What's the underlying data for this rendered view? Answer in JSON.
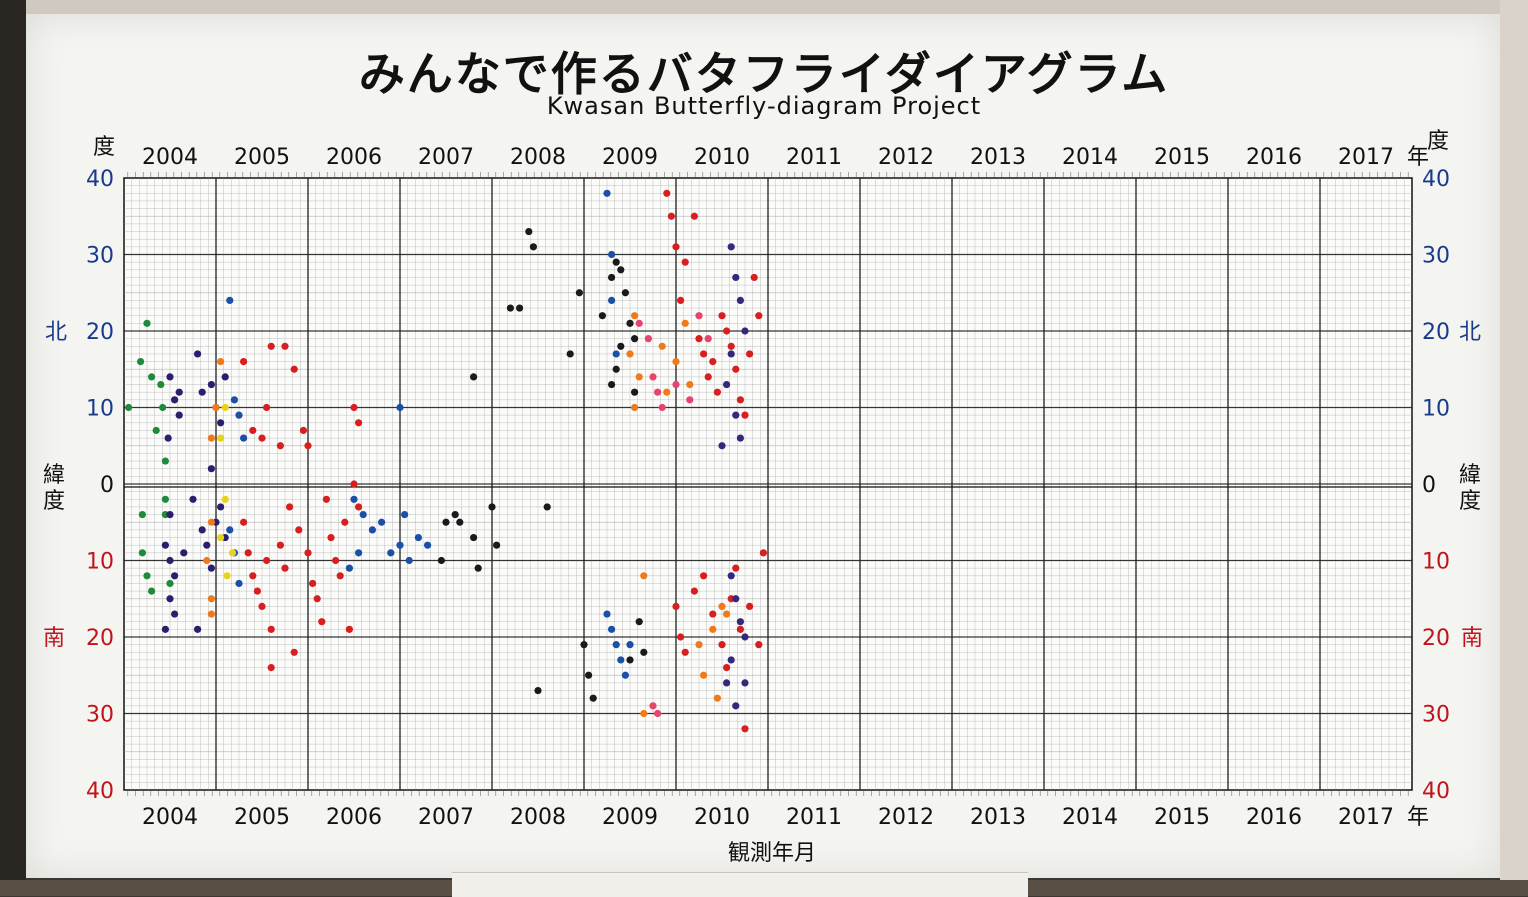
{
  "title_jp": "みんなで作るバタフライダイアグラム",
  "title_en": "Kwasan Butterfly-diagram Project",
  "xlabel": "観測年月",
  "side_labels": {
    "degree": "度",
    "year_unit": "年",
    "north": "北",
    "south": "南",
    "latitude": "緯度"
  },
  "colors": {
    "north_axis": "#1a3a8c",
    "south_axis": "#c0141c",
    "grid": "#9a9a9a",
    "grid_major": "#202020"
  },
  "chart_data": {
    "type": "scatter",
    "title": "みんなで作るバタフライダイアグラム",
    "subtitle": "Kwasan Butterfly-diagram Project",
    "xlabel": "観測年月",
    "ylabel": "緯度",
    "x_range": [
      2004,
      2018
    ],
    "y_range": [
      -40,
      40
    ],
    "years": [
      "2004",
      "2005",
      "2006",
      "2007",
      "2008",
      "2009",
      "2010",
      "2011",
      "2012",
      "2013",
      "2014",
      "2015",
      "2016",
      "2017"
    ],
    "y_ticks_left": [
      "40",
      "30",
      "20",
      "10",
      "0",
      "10",
      "20",
      "30",
      "40"
    ],
    "y_ticks_right": [
      "40",
      "30",
      "20",
      "10",
      "0",
      "10",
      "20",
      "30",
      "40"
    ],
    "grid": true,
    "series": [
      {
        "color": "#1f8a3a",
        "points": [
          [
            2004.05,
            10
          ],
          [
            2004.18,
            16
          ],
          [
            2004.25,
            21
          ],
          [
            2004.3,
            14
          ],
          [
            2004.35,
            7
          ],
          [
            2004.4,
            13
          ],
          [
            2004.42,
            10
          ],
          [
            2004.45,
            3
          ],
          [
            2004.45,
            -2
          ],
          [
            2004.45,
            -4
          ],
          [
            2004.2,
            -4
          ],
          [
            2004.2,
            -9
          ],
          [
            2004.25,
            -12
          ],
          [
            2004.3,
            -14
          ],
          [
            2004.5,
            -13
          ]
        ]
      },
      {
        "color": "#2a1f6e",
        "points": [
          [
            2004.5,
            14
          ],
          [
            2004.55,
            11
          ],
          [
            2004.6,
            9
          ],
          [
            2004.48,
            6
          ],
          [
            2004.6,
            12
          ],
          [
            2004.8,
            17
          ],
          [
            2004.85,
            12
          ],
          [
            2004.95,
            13
          ],
          [
            2005.0,
            10
          ],
          [
            2005.05,
            8
          ],
          [
            2005.1,
            14
          ],
          [
            2004.95,
            2
          ],
          [
            2004.5,
            -4
          ],
          [
            2004.45,
            -8
          ],
          [
            2004.5,
            -10
          ],
          [
            2004.55,
            -12
          ],
          [
            2004.5,
            -15
          ],
          [
            2004.55,
            -17
          ],
          [
            2004.45,
            -19
          ],
          [
            2004.75,
            -2
          ],
          [
            2004.85,
            -6
          ],
          [
            2004.9,
            -8
          ],
          [
            2005.0,
            -5
          ],
          [
            2005.05,
            -3
          ],
          [
            2004.95,
            -11
          ],
          [
            2005.1,
            -7
          ],
          [
            2004.8,
            -19
          ],
          [
            2004.65,
            -9
          ]
        ]
      },
      {
        "color": "#1b4fa8",
        "points": [
          [
            2005.15,
            24
          ],
          [
            2005.2,
            11
          ],
          [
            2005.25,
            9
          ],
          [
            2005.3,
            6
          ],
          [
            2005.15,
            -6
          ],
          [
            2005.2,
            -9
          ],
          [
            2005.25,
            -13
          ],
          [
            2007.0,
            10
          ],
          [
            2006.5,
            -2
          ],
          [
            2006.6,
            -4
          ],
          [
            2006.7,
            -6
          ],
          [
            2006.8,
            -5
          ],
          [
            2006.9,
            -9
          ],
          [
            2007.0,
            -8
          ],
          [
            2007.05,
            -4
          ],
          [
            2007.1,
            -10
          ],
          [
            2007.2,
            -7
          ],
          [
            2007.3,
            -8
          ],
          [
            2006.55,
            -9
          ],
          [
            2006.45,
            -11
          ],
          [
            2009.25,
            38
          ],
          [
            2009.3,
            30
          ],
          [
            2009.3,
            24
          ],
          [
            2009.35,
            17
          ],
          [
            2009.25,
            -17
          ],
          [
            2009.3,
            -19
          ],
          [
            2009.35,
            -21
          ],
          [
            2009.4,
            -23
          ],
          [
            2009.45,
            -25
          ],
          [
            2009.5,
            -21
          ]
        ]
      },
      {
        "color": "#e8d21a",
        "points": [
          [
            2005.1,
            -2
          ],
          [
            2005.05,
            -7
          ],
          [
            2005.12,
            -12
          ],
          [
            2005.18,
            -9
          ],
          [
            2005.1,
            10
          ],
          [
            2005.05,
            6
          ]
        ]
      },
      {
        "color": "#f07a1a",
        "points": [
          [
            2005.05,
            16
          ],
          [
            2005.0,
            10
          ],
          [
            2004.95,
            6
          ],
          [
            2004.95,
            -5
          ],
          [
            2004.9,
            -10
          ],
          [
            2004.95,
            -15
          ],
          [
            2004.95,
            -17
          ],
          [
            2009.55,
            22
          ],
          [
            2009.5,
            17
          ],
          [
            2009.6,
            14
          ],
          [
            2009.55,
            10
          ],
          [
            2009.65,
            -12
          ],
          [
            2009.65,
            -30
          ],
          [
            2009.85,
            18
          ],
          [
            2009.9,
            12
          ],
          [
            2010.0,
            16
          ],
          [
            2010.1,
            21
          ],
          [
            2010.15,
            13
          ],
          [
            2010.25,
            -21
          ],
          [
            2010.3,
            -25
          ],
          [
            2010.4,
            -19
          ],
          [
            2010.45,
            -28
          ],
          [
            2010.5,
            -16
          ],
          [
            2010.55,
            -17
          ]
        ]
      },
      {
        "color": "#d81e1e",
        "points": [
          [
            2005.3,
            16
          ],
          [
            2005.4,
            7
          ],
          [
            2005.55,
            10
          ],
          [
            2005.6,
            18
          ],
          [
            2005.75,
            18
          ],
          [
            2005.5,
            6
          ],
          [
            2005.7,
            5
          ],
          [
            2005.85,
            15
          ],
          [
            2005.95,
            7
          ],
          [
            2006.0,
            5
          ],
          [
            2006.5,
            10
          ],
          [
            2006.55,
            8
          ],
          [
            2005.3,
            -5
          ],
          [
            2005.35,
            -9
          ],
          [
            2005.4,
            -12
          ],
          [
            2005.45,
            -14
          ],
          [
            2005.5,
            -16
          ],
          [
            2005.55,
            -10
          ],
          [
            2005.6,
            -19
          ],
          [
            2005.7,
            -8
          ],
          [
            2005.75,
            -11
          ],
          [
            2005.8,
            -3
          ],
          [
            2005.85,
            -22
          ],
          [
            2005.9,
            -6
          ],
          [
            2006.0,
            -9
          ],
          [
            2006.05,
            -13
          ],
          [
            2006.1,
            -15
          ],
          [
            2006.15,
            -18
          ],
          [
            2006.2,
            -2
          ],
          [
            2006.25,
            -7
          ],
          [
            2006.3,
            -10
          ],
          [
            2006.35,
            -12
          ],
          [
            2006.4,
            -5
          ],
          [
            2006.45,
            -19
          ],
          [
            2006.5,
            0
          ],
          [
            2006.55,
            -3
          ],
          [
            2005.6,
            -24
          ],
          [
            2009.9,
            38
          ],
          [
            2009.95,
            35
          ],
          [
            2010.0,
            31
          ],
          [
            2010.05,
            24
          ],
          [
            2010.1,
            29
          ],
          [
            2010.2,
            35
          ],
          [
            2010.25,
            19
          ],
          [
            2010.3,
            17
          ],
          [
            2010.35,
            14
          ],
          [
            2010.4,
            16
          ],
          [
            2010.45,
            12
          ],
          [
            2010.5,
            22
          ],
          [
            2010.55,
            20
          ],
          [
            2010.6,
            18
          ],
          [
            2010.65,
            15
          ],
          [
            2010.7,
            11
          ],
          [
            2010.75,
            9
          ],
          [
            2010.8,
            17
          ],
          [
            2010.85,
            27
          ],
          [
            2010.9,
            22
          ],
          [
            2010.95,
            -9
          ],
          [
            2010.0,
            -16
          ],
          [
            2010.05,
            -20
          ],
          [
            2010.1,
            -22
          ],
          [
            2010.2,
            -14
          ],
          [
            2010.3,
            -12
          ],
          [
            2010.4,
            -17
          ],
          [
            2010.5,
            -21
          ],
          [
            2010.55,
            -24
          ],
          [
            2010.6,
            -15
          ],
          [
            2010.65,
            -11
          ],
          [
            2010.7,
            -19
          ],
          [
            2010.75,
            -32
          ],
          [
            2010.8,
            -16
          ],
          [
            2010.9,
            -21
          ]
        ]
      },
      {
        "color": "#e8436c",
        "points": [
          [
            2009.6,
            21
          ],
          [
            2009.7,
            19
          ],
          [
            2009.75,
            14
          ],
          [
            2009.8,
            12
          ],
          [
            2009.85,
            10
          ],
          [
            2010.0,
            13
          ],
          [
            2010.15,
            11
          ],
          [
            2010.25,
            22
          ],
          [
            2010.35,
            19
          ],
          [
            2009.75,
            -29
          ],
          [
            2009.8,
            -30
          ]
        ]
      },
      {
        "color": "#35287a",
        "points": [
          [
            2010.6,
            31
          ],
          [
            2010.65,
            27
          ],
          [
            2010.7,
            24
          ],
          [
            2010.75,
            20
          ],
          [
            2010.6,
            17
          ],
          [
            2010.55,
            13
          ],
          [
            2010.65,
            9
          ],
          [
            2010.7,
            6
          ],
          [
            2010.5,
            5
          ],
          [
            2010.6,
            -12
          ],
          [
            2010.65,
            -15
          ],
          [
            2010.7,
            -18
          ],
          [
            2010.75,
            -20
          ],
          [
            2010.6,
            -23
          ],
          [
            2010.55,
            -26
          ],
          [
            2010.65,
            -29
          ],
          [
            2010.75,
            -26
          ]
        ]
      },
      {
        "color": "#1a1a1a",
        "points": [
          [
            2008.2,
            23
          ],
          [
            2008.3,
            23
          ],
          [
            2008.4,
            33
          ],
          [
            2008.45,
            31
          ],
          [
            2007.8,
            14
          ],
          [
            2007.6,
            -4
          ],
          [
            2007.65,
            -5
          ],
          [
            2007.8,
            -7
          ],
          [
            2007.85,
            -11
          ],
          [
            2007.5,
            -5
          ],
          [
            2007.45,
            -10
          ],
          [
            2008.0,
            -3
          ],
          [
            2008.05,
            -8
          ],
          [
            2008.5,
            -27
          ],
          [
            2008.6,
            -3
          ],
          [
            2008.85,
            17
          ],
          [
            2008.95,
            25
          ],
          [
            2009.0,
            -21
          ],
          [
            2009.05,
            -25
          ],
          [
            2009.1,
            -28
          ],
          [
            2009.2,
            22
          ],
          [
            2009.3,
            27
          ],
          [
            2009.35,
            29
          ],
          [
            2009.4,
            28
          ],
          [
            2009.45,
            25
          ],
          [
            2009.5,
            21
          ],
          [
            2009.55,
            19
          ],
          [
            2009.3,
            13
          ],
          [
            2009.35,
            15
          ],
          [
            2009.4,
            18
          ],
          [
            2009.55,
            12
          ],
          [
            2009.6,
            -18
          ],
          [
            2009.65,
            -22
          ],
          [
            2009.5,
            -23
          ]
        ]
      }
    ]
  }
}
